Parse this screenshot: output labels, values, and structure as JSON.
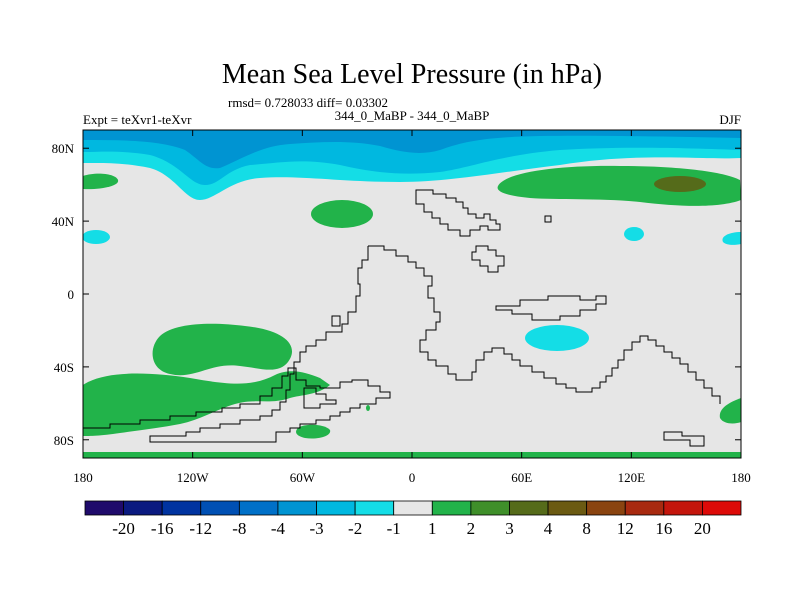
{
  "chart_data": {
    "type": "contour-map",
    "title": "Mean Sea Level Pressure (in hPa)",
    "stats_line": "rmsd= 0.728033 diff= 0.03302",
    "left_label": "Expt = teXvr1-teXvr",
    "center_label": "344_0_MaBP - 344_0_MaBP",
    "season": "DJF",
    "x_axis": {
      "range": [
        -180,
        180
      ],
      "ticks": [
        -180,
        -120,
        -60,
        0,
        60,
        120,
        180
      ],
      "tick_labels": [
        "180",
        "120W",
        "60W",
        "0",
        "60E",
        "120E",
        "180"
      ]
    },
    "y_axis": {
      "range": [
        -90,
        90
      ],
      "ticks": [
        80,
        40,
        0,
        -40,
        -80
      ],
      "tick_labels": [
        "80N",
        "40N",
        "0",
        "40S",
        "80S"
      ]
    },
    "colorbar": {
      "levels": [
        "-20",
        "-16",
        "-12",
        "-8",
        "-4",
        "-3",
        "-2",
        "-1",
        "1",
        "2",
        "3",
        "4",
        "8",
        "12",
        "16",
        "20"
      ],
      "colors": [
        "#1f0a6b",
        "#0a1a80",
        "#0033a0",
        "#0050b4",
        "#0070c8",
        "#0094d2",
        "#00b8e0",
        "#14dde6",
        "#e6e6e6",
        "#22b34a",
        "#3f8f2a",
        "#556b1a",
        "#6b5a12",
        "#8a4410",
        "#a82a10",
        "#c4160c",
        "#dd0a08"
      ]
    }
  }
}
